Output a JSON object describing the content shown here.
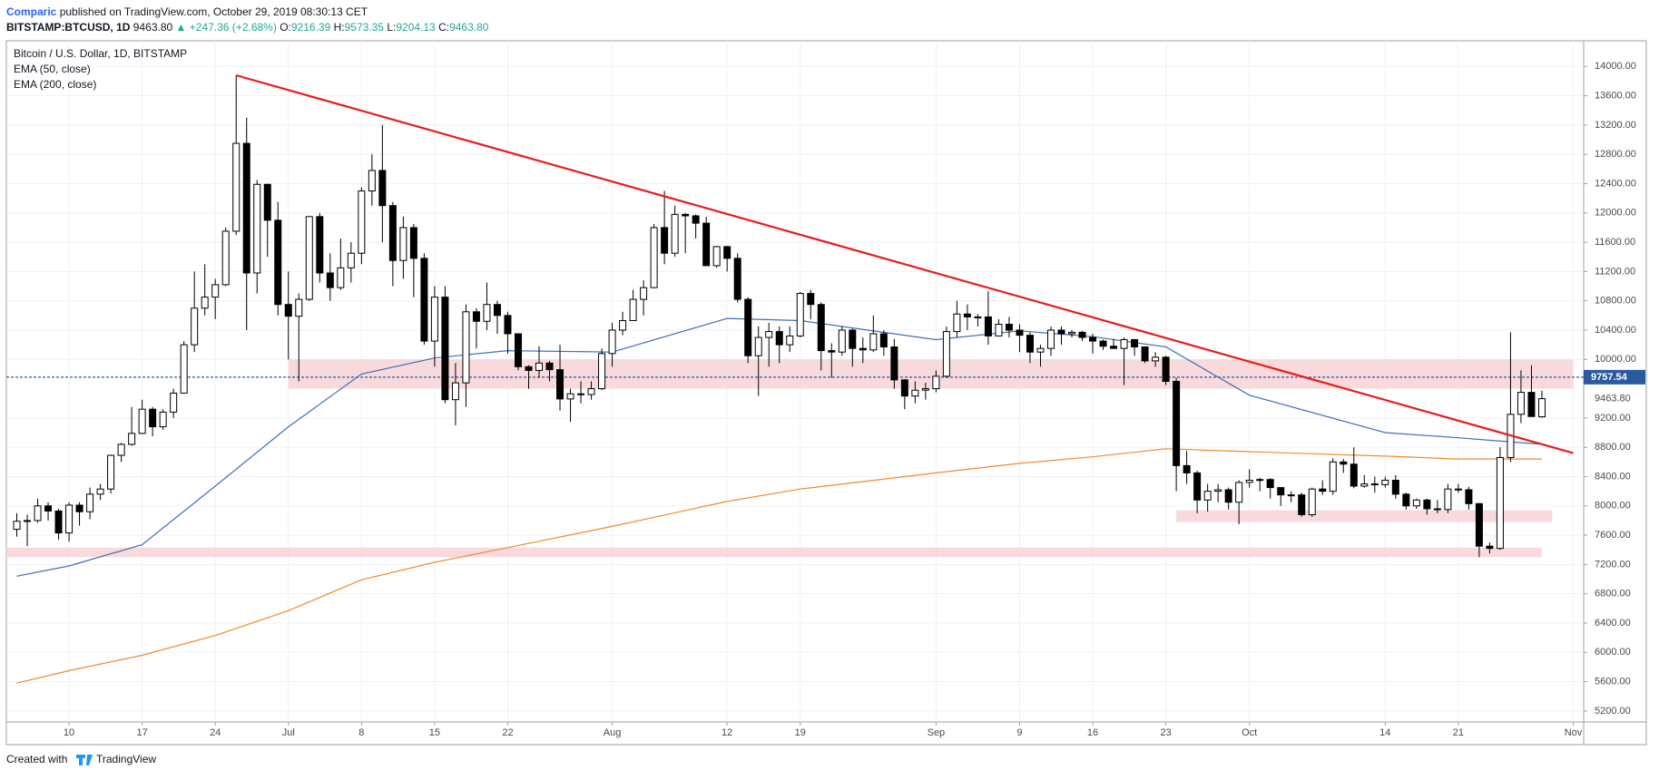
{
  "header": {
    "author": "Comparic",
    "published": "published on TradingView.com, October 29, 2019 08:30:13 CET",
    "symbol": "BITSTAMP:BTCUSD, 1D",
    "last": "9463.80",
    "change": "+247.36 (+2.68%)",
    "ohlc": [
      {
        "label": "O:",
        "value": "9216.39"
      },
      {
        "label": "H:",
        "value": "9573.35"
      },
      {
        "label": "L:",
        "value": "9204.13"
      },
      {
        "label": "C:",
        "value": "9463.80"
      }
    ]
  },
  "footer": {
    "text": "Created with",
    "brand": "TradingView"
  },
  "chart_data": {
    "type": "candlestick",
    "title": "Bitcoin / U.S. Dollar, 1D, BITSTAMP",
    "up_color": "#ffffff",
    "down_color": "#000000",
    "grid": true,
    "xlim": [
      "2019-06-04",
      "2019-11-02"
    ],
    "ylim": [
      5050,
      14350
    ],
    "xticks": [
      {
        "value": "2019-06-10",
        "label": "10"
      },
      {
        "value": "2019-06-17",
        "label": "17"
      },
      {
        "value": "2019-06-24",
        "label": "24"
      },
      {
        "value": "2019-07-01",
        "label": "Jul"
      },
      {
        "value": "2019-07-08",
        "label": "8"
      },
      {
        "value": "2019-07-15",
        "label": "15"
      },
      {
        "value": "2019-07-22",
        "label": "22"
      },
      {
        "value": "2019-08-01",
        "label": "Aug"
      },
      {
        "value": "2019-08-12",
        "label": "12"
      },
      {
        "value": "2019-08-19",
        "label": "19"
      },
      {
        "value": "2019-09-01",
        "label": "Sep"
      },
      {
        "value": "2019-09-09",
        "label": "9"
      },
      {
        "value": "2019-09-16",
        "label": "16"
      },
      {
        "value": "2019-09-23",
        "label": "23"
      },
      {
        "value": "2019-10-01",
        "label": "Oct"
      },
      {
        "value": "2019-10-14",
        "label": "14"
      },
      {
        "value": "2019-10-21",
        "label": "21"
      },
      {
        "value": "2019-11-01",
        "label": "Nov"
      }
    ],
    "yticks": [
      {
        "value": 5200,
        "label": "5200.00"
      },
      {
        "value": 5600,
        "label": "5600.00"
      },
      {
        "value": 6000,
        "label": "6000.00"
      },
      {
        "value": 6400,
        "label": "6400.00"
      },
      {
        "value": 6800,
        "label": "6800.00"
      },
      {
        "value": 7200,
        "label": "7200.00"
      },
      {
        "value": 7600,
        "label": "7600.00"
      },
      {
        "value": 8000,
        "label": "8000.00"
      },
      {
        "value": 8400,
        "label": "8400.00"
      },
      {
        "value": 8800,
        "label": "8800.00"
      },
      {
        "value": 9200,
        "label": "9200.00"
      },
      {
        "value": 10000,
        "label": "10000.00"
      },
      {
        "value": 10400,
        "label": "10400.00"
      },
      {
        "value": 10800,
        "label": "10800.00"
      },
      {
        "value": 11200,
        "label": "11200.00"
      },
      {
        "value": 11600,
        "label": "11600.00"
      },
      {
        "value": 12000,
        "label": "12000.00"
      },
      {
        "value": 12400,
        "label": "12400.00"
      },
      {
        "value": 12800,
        "label": "12800.00"
      },
      {
        "value": 13200,
        "label": "13200.00"
      },
      {
        "value": 13600,
        "label": "13600.00"
      },
      {
        "value": 14000,
        "label": "14000.00"
      }
    ],
    "x": [
      "2019-06-05",
      "2019-06-06",
      "2019-06-07",
      "2019-06-08",
      "2019-06-09",
      "2019-06-10",
      "2019-06-11",
      "2019-06-12",
      "2019-06-13",
      "2019-06-14",
      "2019-06-15",
      "2019-06-16",
      "2019-06-17",
      "2019-06-18",
      "2019-06-19",
      "2019-06-20",
      "2019-06-21",
      "2019-06-22",
      "2019-06-23",
      "2019-06-24",
      "2019-06-25",
      "2019-06-26",
      "2019-06-27",
      "2019-06-28",
      "2019-06-29",
      "2019-06-30",
      "2019-07-01",
      "2019-07-02",
      "2019-07-03",
      "2019-07-04",
      "2019-07-05",
      "2019-07-06",
      "2019-07-07",
      "2019-07-08",
      "2019-07-09",
      "2019-07-10",
      "2019-07-11",
      "2019-07-12",
      "2019-07-13",
      "2019-07-14",
      "2019-07-15",
      "2019-07-16",
      "2019-07-17",
      "2019-07-18",
      "2019-07-19",
      "2019-07-20",
      "2019-07-21",
      "2019-07-22",
      "2019-07-23",
      "2019-07-24",
      "2019-07-25",
      "2019-07-26",
      "2019-07-27",
      "2019-07-28",
      "2019-07-29",
      "2019-07-30",
      "2019-07-31",
      "2019-08-01",
      "2019-08-02",
      "2019-08-03",
      "2019-08-04",
      "2019-08-05",
      "2019-08-06",
      "2019-08-07",
      "2019-08-08",
      "2019-08-09",
      "2019-08-10",
      "2019-08-11",
      "2019-08-12",
      "2019-08-13",
      "2019-08-14",
      "2019-08-15",
      "2019-08-16",
      "2019-08-17",
      "2019-08-18",
      "2019-08-19",
      "2019-08-20",
      "2019-08-21",
      "2019-08-22",
      "2019-08-23",
      "2019-08-24",
      "2019-08-25",
      "2019-08-26",
      "2019-08-27",
      "2019-08-28",
      "2019-08-29",
      "2019-08-30",
      "2019-08-31",
      "2019-09-01",
      "2019-09-02",
      "2019-09-03",
      "2019-09-04",
      "2019-09-05",
      "2019-09-06",
      "2019-09-07",
      "2019-09-08",
      "2019-09-09",
      "2019-09-10",
      "2019-09-11",
      "2019-09-12",
      "2019-09-13",
      "2019-09-14",
      "2019-09-15",
      "2019-09-16",
      "2019-09-17",
      "2019-09-18",
      "2019-09-19",
      "2019-09-20",
      "2019-09-21",
      "2019-09-22",
      "2019-09-23",
      "2019-09-24",
      "2019-09-25",
      "2019-09-26",
      "2019-09-27",
      "2019-09-28",
      "2019-09-29",
      "2019-09-30",
      "2019-10-01",
      "2019-10-02",
      "2019-10-03",
      "2019-10-04",
      "2019-10-05",
      "2019-10-06",
      "2019-10-07",
      "2019-10-08",
      "2019-10-09",
      "2019-10-10",
      "2019-10-11",
      "2019-10-12",
      "2019-10-13",
      "2019-10-14",
      "2019-10-15",
      "2019-10-16",
      "2019-10-17",
      "2019-10-18",
      "2019-10-19",
      "2019-10-20",
      "2019-10-21",
      "2019-10-22",
      "2019-10-23",
      "2019-10-24",
      "2019-10-25",
      "2019-10-26",
      "2019-10-27",
      "2019-10-28",
      "2019-10-29"
    ],
    "open": [
      7680,
      7790,
      7800,
      8000,
      7930,
      7630,
      8010,
      7920,
      8160,
      8230,
      8690,
      8840,
      8990,
      9320,
      9080,
      9280,
      9540,
      10200,
      10700,
      10850,
      11020,
      11750,
      12950,
      11180,
      12390,
      11900,
      10750,
      10590,
      10820,
      11950,
      11180,
      10980,
      11250,
      11450,
      12300,
      12580,
      12100,
      11350,
      11800,
      11380,
      10250,
      10850,
      9450,
      9680,
      10650,
      10520,
      10750,
      10600,
      10350,
      9900,
      9850,
      9950,
      9860,
      9460,
      9530,
      9520,
      9600,
      10080,
      10400,
      10530,
      10820,
      10980,
      11800,
      11450,
      11980,
      11960,
      11860,
      11280,
      11540,
      11380,
      10820,
      10050,
      10300,
      10380,
      10200,
      10320,
      10900,
      10750,
      10120,
      10100,
      10400,
      10150,
      10130,
      10350,
      10170,
      9720,
      9500,
      9580,
      9600,
      9770,
      10380,
      10620,
      10580,
      10580,
      10320,
      10480,
      10400,
      10330,
      10100,
      10150,
      10400,
      10350,
      10370,
      10300,
      10250,
      10180,
      10150,
      10270,
      10170,
      9980,
      10030,
      9700,
      8550,
      8450,
      8080,
      8200,
      8220,
      8050,
      8320,
      8350,
      8360,
      8250,
      8150,
      8150,
      7880,
      8230,
      8200,
      8600,
      8570,
      8270,
      8300,
      8290,
      8350,
      8160,
      8000,
      8080,
      7960,
      7950,
      8230,
      8220,
      8030,
      7450,
      7420,
      8660,
      9250,
      9550,
      9216.39
    ],
    "high": [
      7900,
      7880,
      8100,
      8050,
      7960,
      8050,
      8050,
      8250,
      8300,
      8700,
      8860,
      9350,
      9450,
      9350,
      9320,
      9600,
      10250,
      11200,
      11300,
      11100,
      11800,
      13880,
      13300,
      12450,
      12400,
      12150,
      11200,
      10900,
      11950,
      12000,
      11450,
      11650,
      11600,
      12350,
      12800,
      13200,
      12150,
      11950,
      11850,
      11450,
      11000,
      11000,
      9950,
      10750,
      10700,
      11050,
      10800,
      10650,
      10350,
      9920,
      10180,
      9980,
      10200,
      9600,
      9700,
      9700,
      10150,
      10500,
      10650,
      10950,
      11080,
      11850,
      12300,
      12100,
      12000,
      11980,
      11950,
      11550,
      11550,
      11450,
      10850,
      10450,
      10500,
      10450,
      10450,
      10920,
      10950,
      10780,
      10220,
      10450,
      10420,
      10300,
      10600,
      10400,
      10280,
      9730,
      9700,
      9680,
      9850,
      10450,
      10800,
      10750,
      10620,
      10930,
      10550,
      10580,
      10480,
      10370,
      10200,
      10450,
      10450,
      10400,
      10390,
      10350,
      10270,
      10280,
      10300,
      10280,
      10170,
      10100,
      10050,
      9750,
      8750,
      8480,
      8300,
      8300,
      8250,
      8350,
      8500,
      8380,
      8380,
      8250,
      8200,
      8180,
      8250,
      8350,
      8650,
      8640,
      8800,
      8420,
      8400,
      8400,
      8420,
      8180,
      8100,
      8100,
      8080,
      8300,
      8300,
      8260,
      8040,
      7500,
      8800,
      10370,
      9850,
      9920,
      9573.35
    ],
    "low": [
      7580,
      7450,
      7770,
      7800,
      7540,
      7510,
      7730,
      7820,
      8080,
      8170,
      8600,
      8820,
      8980,
      8950,
      9040,
      9200,
      9540,
      10100,
      10600,
      10550,
      11000,
      11700,
      10400,
      10900,
      11400,
      10600,
      10000,
      9700,
      10800,
      11050,
      10800,
      10950,
      11050,
      11300,
      12100,
      11600,
      11000,
      11100,
      10850,
      10200,
      9900,
      9400,
      9100,
      9350,
      10150,
      10400,
      10350,
      10080,
      9850,
      9600,
      9750,
      9700,
      9300,
      9150,
      9400,
      9450,
      9580,
      9900,
      10330,
      10530,
      10600,
      10970,
      11300,
      11400,
      11450,
      11650,
      11300,
      11250,
      11200,
      10780,
      9950,
      9500,
      9900,
      9950,
      10100,
      10300,
      10550,
      9850,
      9750,
      10050,
      9900,
      9950,
      10100,
      10050,
      9600,
      9320,
      9400,
      9450,
      9550,
      9750,
      10300,
      10400,
      10450,
      10200,
      10320,
      10300,
      10100,
      9950,
      9900,
      10050,
      10200,
      10300,
      10250,
      10080,
      10130,
      10150,
      9650,
      10050,
      9950,
      9900,
      9650,
      8200,
      8300,
      7900,
      7920,
      8050,
      7950,
      7750,
      8250,
      8200,
      8100,
      8000,
      8050,
      7850,
      7850,
      8150,
      8150,
      8450,
      8240,
      8250,
      8180,
      8250,
      8100,
      7950,
      7960,
      7880,
      7900,
      7900,
      8180,
      7950,
      7300,
      7350,
      7400,
      8600,
      9130,
      9220,
      9204.13
    ],
    "close": [
      7790,
      7800,
      8000,
      7930,
      7630,
      8010,
      7920,
      8160,
      8230,
      8690,
      8840,
      8990,
      9320,
      9080,
      9280,
      9540,
      10200,
      10700,
      10850,
      11020,
      11750,
      12950,
      11180,
      12390,
      11900,
      10750,
      10590,
      10820,
      11950,
      11180,
      10980,
      11250,
      11450,
      12300,
      12580,
      12100,
      11350,
      11800,
      11380,
      10250,
      10850,
      9450,
      9680,
      10650,
      10520,
      10750,
      10600,
      10350,
      9900,
      9850,
      9950,
      9860,
      9460,
      9530,
      9520,
      9600,
      10080,
      10400,
      10530,
      10820,
      10980,
      11800,
      11450,
      11980,
      11960,
      11860,
      11280,
      11540,
      11380,
      10820,
      10050,
      10300,
      10380,
      10200,
      10320,
      10900,
      10750,
      10120,
      10100,
      10400,
      10150,
      10130,
      10350,
      10170,
      9720,
      9500,
      9580,
      9600,
      9770,
      10380,
      10620,
      10580,
      10580,
      10320,
      10480,
      10400,
      10330,
      10100,
      10150,
      10400,
      10350,
      10370,
      10300,
      10250,
      10180,
      10150,
      10270,
      10170,
      9980,
      10030,
      9700,
      8550,
      8450,
      8080,
      8200,
      8220,
      8050,
      8320,
      8350,
      8360,
      8250,
      8150,
      8150,
      7880,
      8230,
      8200,
      8600,
      8570,
      8270,
      8300,
      8290,
      8350,
      8160,
      8000,
      8080,
      7960,
      7950,
      8230,
      8220,
      8030,
      7450,
      7420,
      8660,
      9250,
      9550,
      9220,
      9463.8
    ],
    "last_close_label": "9463.80",
    "last_price": 9757.54,
    "last_price_color": "#2a5aa0",
    "series": [
      {
        "name": "EMA (50, close)",
        "color": "#3d6fb6",
        "x": [
          "2019-06-05",
          "2019-06-10",
          "2019-06-17",
          "2019-06-24",
          "2019-07-01",
          "2019-07-08",
          "2019-07-15",
          "2019-07-22",
          "2019-08-01",
          "2019-08-12",
          "2019-08-19",
          "2019-09-01",
          "2019-09-09",
          "2019-09-16",
          "2019-09-23",
          "2019-10-01",
          "2019-10-14",
          "2019-10-21",
          "2019-10-29"
        ],
        "values": [
          7040,
          7180,
          7470,
          8270,
          9080,
          9800,
          10020,
          10120,
          10100,
          10560,
          10530,
          10270,
          10390,
          10310,
          10170,
          9510,
          9000,
          8930,
          8840
        ]
      },
      {
        "name": "EMA (200, close)",
        "color": "#f08a2c",
        "x": [
          "2019-06-05",
          "2019-06-10",
          "2019-06-17",
          "2019-06-24",
          "2019-07-01",
          "2019-07-08",
          "2019-07-15",
          "2019-07-22",
          "2019-08-01",
          "2019-08-12",
          "2019-08-19",
          "2019-09-01",
          "2019-09-09",
          "2019-09-16",
          "2019-09-23",
          "2019-10-01",
          "2019-10-14",
          "2019-10-21",
          "2019-10-29"
        ],
        "values": [
          5580,
          5750,
          5960,
          6230,
          6570,
          6990,
          7230,
          7430,
          7720,
          8060,
          8230,
          8450,
          8580,
          8670,
          8780,
          8740,
          8680,
          8640,
          8640
        ]
      }
    ],
    "trendline": {
      "color": "#e81c1c",
      "x": [
        "2019-06-26",
        "2019-11-01"
      ],
      "values": [
        13880,
        8720
      ]
    },
    "zones": [
      {
        "color": "#f7d3d6",
        "x": [
          "2019-07-01",
          "2019-11-01"
        ],
        "values": [
          9600,
          10000
        ]
      },
      {
        "color": "#f7d3d6",
        "x": [
          "2019-09-24",
          "2019-10-30"
        ],
        "values": [
          7780,
          7940
        ]
      },
      {
        "color": "#f7d3d6",
        "x": [
          "2019-06-04",
          "2019-10-29"
        ],
        "values": [
          7300,
          7430
        ]
      }
    ]
  }
}
